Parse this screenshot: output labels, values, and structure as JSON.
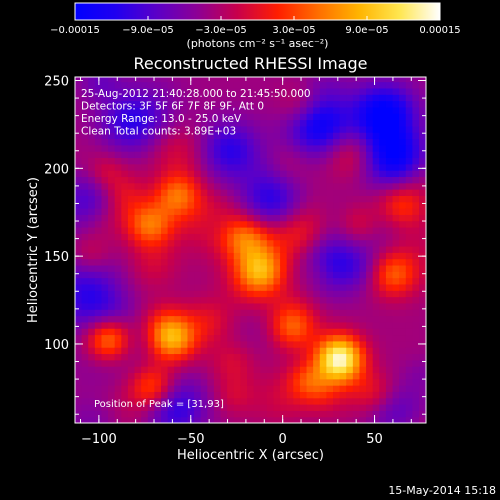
{
  "chart_data": {
    "type": "heatmap",
    "title": "Reconstructed RHESSI Image",
    "xlabel": "Heliocentric X (arcsec)",
    "ylabel": "Heliocentric Y (arcsec)",
    "xlim": [
      -113,
      78
    ],
    "ylim": [
      55,
      252
    ],
    "xticks": [
      -100,
      -50,
      0,
      50
    ],
    "yticks": [
      100,
      150,
      200,
      250
    ],
    "xtick_labels": [
      "−100",
      "−50",
      "0",
      "50"
    ],
    "ytick_labels": [
      "100",
      "150",
      "200",
      "250"
    ],
    "colorbar": {
      "range": [
        -0.00015,
        0.00015
      ],
      "ticks": [
        -0.00015,
        -9e-05,
        -3e-05,
        3e-05,
        9e-05,
        0.00015
      ],
      "tick_labels": [
        "−0.00015",
        "−9.0e−05",
        "−3.0e−05",
        "3.0e−05",
        "9.0e−05",
        "0.00015"
      ],
      "unit_label": "(photons cm⁻² s⁻¹ asec⁻²)",
      "colors": [
        "#0000ff",
        "#2000f0",
        "#5a00c8",
        "#8c0096",
        "#c8004b",
        "#ff1e00",
        "#ff6e00",
        "#ffb400",
        "#ffe650",
        "#ffffff"
      ]
    },
    "annotations": [
      "25-Aug-2012 21:40:28.000 to 21:45:50.000",
      "Detectors: 3F 5F 6F 7F 8F 9F, Att 0",
      "Energy Range: 13.0 - 25.0 keV",
      "Clean     Total counts: 3.89E+03"
    ],
    "peak_label": "Position of Peak = [31,93]",
    "peak": [
      31,
      93
    ],
    "bright_sources": [
      {
        "x": 31,
        "y": 93,
        "value": 0.00015
      },
      {
        "x": -95,
        "y": 103,
        "value": 0.00012
      },
      {
        "x": -60,
        "y": 103,
        "value": 0.00011
      },
      {
        "x": -12,
        "y": 142,
        "value": 0.0001
      },
      {
        "x": -57,
        "y": 185,
        "value": 9e-05
      },
      {
        "x": -72,
        "y": 168,
        "value": 8e-05
      },
      {
        "x": -20,
        "y": 160,
        "value": 7e-05
      },
      {
        "x": 5,
        "y": 110,
        "value": 8e-05
      },
      {
        "x": 60,
        "y": 140,
        "value": 7e-05
      },
      {
        "x": 40,
        "y": 168,
        "value": 6e-05
      },
      {
        "x": 65,
        "y": 180,
        "value": 6e-05
      },
      {
        "x": -105,
        "y": 150,
        "value": 5e-05
      },
      {
        "x": -70,
        "y": 75,
        "value": 9e-05
      },
      {
        "x": 50,
        "y": 72,
        "value": 5e-05
      }
    ],
    "dark_sources": [
      {
        "x": 55,
        "y": 230,
        "value": -0.00013
      },
      {
        "x": 60,
        "y": 207,
        "value": -0.00012
      },
      {
        "x": 20,
        "y": 225,
        "value": -0.0001
      },
      {
        "x": -5,
        "y": 182,
        "value": -9e-05
      },
      {
        "x": -105,
        "y": 183,
        "value": -8e-05
      },
      {
        "x": -30,
        "y": 210,
        "value": -8e-05
      },
      {
        "x": 25,
        "y": 148,
        "value": -8e-05
      },
      {
        "x": -60,
        "y": 65,
        "value": -8e-05
      },
      {
        "x": 62,
        "y": 62,
        "value": -7e-05
      },
      {
        "x": -85,
        "y": 225,
        "value": -6e-05
      }
    ]
  },
  "footer": {
    "timestamp": "15-May-2014 15:18"
  }
}
